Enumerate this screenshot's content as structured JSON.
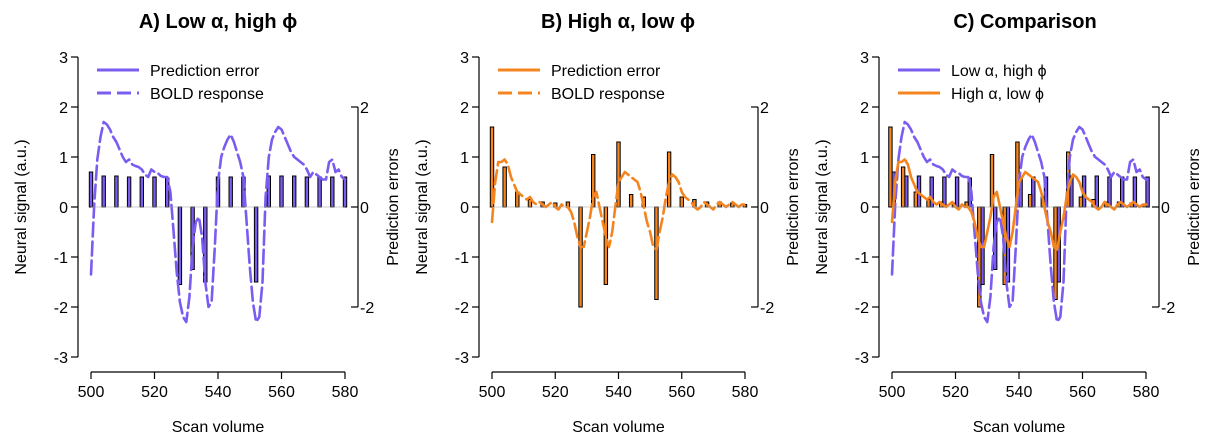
{
  "colors": {
    "low": "#7b5cf0",
    "high": "#f5841f",
    "axis": "#000000"
  },
  "chart_data": [
    {
      "type": "line",
      "title": "A) Low α, high ϕ",
      "xlabel": "Scan volume",
      "ylabel": "Neural signal (a.u.)",
      "y2label": "Prediction errors",
      "xlim": [
        500,
        580
      ],
      "ylim": [
        -3,
        3
      ],
      "y2lim": [
        -2,
        2
      ],
      "xticks": [
        "500",
        "520",
        "540",
        "560",
        "580"
      ],
      "yticks": [
        "3",
        "2",
        "1",
        "0",
        "-1",
        "-2",
        "-3"
      ],
      "y2ticks": [
        "2",
        "0",
        "-2"
      ],
      "legend": {
        "placement": "top-left",
        "entries": [
          {
            "label": "Prediction error",
            "style": "solid",
            "color_key": "low"
          },
          {
            "label": "BOLD response",
            "style": "dashed",
            "color_key": "low"
          }
        ]
      },
      "series": [
        {
          "kind": "bars",
          "color_key": "low",
          "axis": "right",
          "x": [
            500,
            504,
            508,
            512,
            516,
            520,
            524,
            528,
            532,
            536,
            540,
            544,
            548,
            552,
            556,
            560,
            564,
            568,
            572,
            576,
            580
          ],
          "values": [
            0.7,
            0.62,
            0.62,
            0.6,
            0.6,
            0.6,
            0.58,
            -1.55,
            -1.25,
            -1.5,
            0.6,
            0.6,
            0.6,
            -1.5,
            0.62,
            0.62,
            0.62,
            0.6,
            0.6,
            0.6,
            0.6
          ]
        },
        {
          "kind": "line",
          "color_key": "low",
          "style": "dashed",
          "axis": "left",
          "x": [
            500,
            501,
            502,
            503,
            504,
            505,
            506,
            507,
            508,
            509,
            510,
            511,
            512,
            513,
            514,
            515,
            516,
            517,
            518,
            519,
            520,
            521,
            522,
            523,
            524,
            525,
            526,
            527,
            528,
            529,
            530,
            531,
            532,
            533,
            534,
            535,
            536,
            537,
            538,
            539,
            540,
            541,
            542,
            543,
            544,
            545,
            546,
            547,
            548,
            549,
            550,
            551,
            552,
            553,
            554,
            555,
            556,
            557,
            558,
            559,
            560,
            561,
            562,
            563,
            564,
            565,
            566,
            567,
            568,
            569,
            570,
            571,
            572,
            573,
            574,
            575,
            576,
            577,
            578,
            579,
            580
          ],
          "values": [
            -1.35,
            0.05,
            0.95,
            1.4,
            1.7,
            1.65,
            1.55,
            1.4,
            1.3,
            1.15,
            1.0,
            0.9,
            0.95,
            0.85,
            0.82,
            0.8,
            0.75,
            0.65,
            0.6,
            0.75,
            0.7,
            0.68,
            0.62,
            0.6,
            0.6,
            0.3,
            -0.5,
            -1.3,
            -1.9,
            -2.2,
            -2.3,
            -1.8,
            -0.8,
            -0.3,
            -0.2,
            -0.6,
            -1.5,
            -2.0,
            -1.9,
            -0.8,
            0.5,
            1.0,
            1.2,
            1.35,
            1.45,
            1.3,
            1.1,
            0.9,
            0.6,
            -0.3,
            -1.2,
            -1.9,
            -2.3,
            -2.2,
            -1.5,
            0.2,
            1.0,
            1.35,
            1.5,
            1.6,
            1.55,
            1.4,
            1.25,
            1.1,
            1.0,
            0.95,
            0.9,
            0.85,
            0.75,
            0.6,
            0.7,
            0.65,
            0.6,
            0.55,
            0.55,
            0.9,
            0.95,
            0.7,
            0.75,
            0.6,
            0.55
          ]
        }
      ]
    },
    {
      "type": "line",
      "title": "B) High α, low ϕ",
      "xlabel": "Scan volume",
      "ylabel": "Neural signal (a.u.)",
      "y2label": "Prediction errors",
      "xlim": [
        500,
        580
      ],
      "ylim": [
        -3,
        3
      ],
      "y2lim": [
        -2,
        2
      ],
      "xticks": [
        "500",
        "520",
        "540",
        "560",
        "580"
      ],
      "yticks": [
        "3",
        "2",
        "1",
        "0",
        "-1",
        "-2",
        "-3"
      ],
      "y2ticks": [
        "2",
        "0",
        "-2"
      ],
      "legend": {
        "placement": "top-left",
        "entries": [
          {
            "label": "Prediction error",
            "style": "solid",
            "color_key": "high"
          },
          {
            "label": "BOLD response",
            "style": "dashed",
            "color_key": "high"
          }
        ]
      },
      "series": [
        {
          "kind": "bars",
          "color_key": "high",
          "axis": "right",
          "x": [
            500,
            504,
            508,
            512,
            516,
            520,
            524,
            528,
            532,
            536,
            540,
            544,
            548,
            552,
            556,
            560,
            564,
            568,
            572,
            576,
            580
          ],
          "values": [
            1.6,
            0.8,
            0.3,
            0.15,
            0.1,
            0.08,
            0.1,
            -2.0,
            1.05,
            -1.55,
            1.3,
            0.25,
            0.2,
            -1.85,
            1.1,
            0.2,
            0.15,
            0.1,
            0.1,
            0.08,
            0.05
          ]
        },
        {
          "kind": "line",
          "color_key": "high",
          "style": "dashed",
          "axis": "left",
          "x": [
            500,
            501,
            502,
            503,
            504,
            505,
            506,
            507,
            508,
            509,
            510,
            511,
            512,
            513,
            514,
            515,
            516,
            517,
            518,
            519,
            520,
            521,
            522,
            523,
            524,
            525,
            526,
            527,
            528,
            529,
            530,
            531,
            532,
            533,
            534,
            535,
            536,
            537,
            538,
            539,
            540,
            541,
            542,
            543,
            544,
            545,
            546,
            547,
            548,
            549,
            550,
            551,
            552,
            553,
            554,
            555,
            556,
            557,
            558,
            559,
            560,
            561,
            562,
            563,
            564,
            565,
            566,
            567,
            568,
            569,
            570,
            571,
            572,
            573,
            574,
            575,
            576,
            577,
            578,
            579,
            580
          ],
          "values": [
            -0.3,
            0.5,
            0.9,
            0.9,
            0.95,
            0.85,
            0.6,
            0.45,
            0.3,
            0.25,
            0.2,
            0.15,
            0.2,
            0.1,
            0.05,
            0.1,
            0.05,
            0.0,
            0.05,
            0.1,
            0.0,
            -0.05,
            0.05,
            0.0,
            0.0,
            -0.1,
            -0.3,
            -0.6,
            -0.8,
            -0.8,
            -0.5,
            -0.2,
            0.2,
            0.3,
            0.0,
            -0.3,
            -0.6,
            -0.8,
            -0.5,
            0.0,
            0.5,
            0.6,
            0.7,
            0.65,
            0.6,
            0.55,
            0.5,
            0.3,
            0.0,
            -0.3,
            -0.5,
            -0.8,
            -0.85,
            -0.5,
            -0.2,
            0.2,
            0.5,
            0.65,
            0.6,
            0.5,
            0.3,
            0.2,
            0.15,
            0.1,
            0.0,
            -0.05,
            0.0,
            0.1,
            0.05,
            0.0,
            -0.05,
            0.05,
            0.1,
            0.05,
            0.0,
            0.05,
            0.1,
            0.05,
            0.0,
            0.05,
            0.05
          ]
        }
      ]
    },
    {
      "type": "line",
      "title": "C) Comparison",
      "xlabel": "Scan volume",
      "ylabel": "Neural signal (a.u.)",
      "y2label": "Prediction errors",
      "xlim": [
        500,
        580
      ],
      "ylim": [
        -3,
        3
      ],
      "y2lim": [
        -2,
        2
      ],
      "xticks": [
        "500",
        "520",
        "540",
        "560",
        "580"
      ],
      "yticks": [
        "3",
        "2",
        "1",
        "0",
        "-1",
        "-2",
        "-3"
      ],
      "y2ticks": [
        "2",
        "0",
        "-2"
      ],
      "legend": {
        "placement": "top-left",
        "entries": [
          {
            "label": "Low α, high ϕ",
            "style": "solid",
            "color_key": "low"
          },
          {
            "label": "High α, low ϕ",
            "style": "solid",
            "color_key": "high"
          }
        ]
      },
      "series": [
        {
          "kind": "bars",
          "color_key": "low",
          "axis": "right",
          "offset": 0.5,
          "x": [
            500,
            504,
            508,
            512,
            516,
            520,
            524,
            528,
            532,
            536,
            540,
            544,
            548,
            552,
            556,
            560,
            564,
            568,
            572,
            576,
            580
          ],
          "values": [
            0.7,
            0.62,
            0.62,
            0.6,
            0.6,
            0.6,
            0.58,
            -1.55,
            -1.25,
            -1.5,
            0.6,
            0.6,
            0.6,
            -1.5,
            0.62,
            0.62,
            0.62,
            0.6,
            0.6,
            0.6,
            0.6
          ]
        },
        {
          "kind": "bars",
          "color_key": "high",
          "axis": "right",
          "offset": -0.5,
          "x": [
            500,
            504,
            508,
            512,
            516,
            520,
            524,
            528,
            532,
            536,
            540,
            544,
            548,
            552,
            556,
            560,
            564,
            568,
            572,
            576,
            580
          ],
          "values": [
            1.6,
            0.8,
            0.3,
            0.15,
            0.1,
            0.08,
            0.1,
            -2.0,
            1.05,
            -1.55,
            1.3,
            0.25,
            0.2,
            -1.85,
            1.1,
            0.2,
            0.15,
            0.1,
            0.1,
            0.08,
            0.05
          ]
        },
        {
          "kind": "line",
          "color_key": "low",
          "style": "dashed",
          "axis": "left",
          "x": [
            500,
            501,
            502,
            503,
            504,
            505,
            506,
            507,
            508,
            509,
            510,
            511,
            512,
            513,
            514,
            515,
            516,
            517,
            518,
            519,
            520,
            521,
            522,
            523,
            524,
            525,
            526,
            527,
            528,
            529,
            530,
            531,
            532,
            533,
            534,
            535,
            536,
            537,
            538,
            539,
            540,
            541,
            542,
            543,
            544,
            545,
            546,
            547,
            548,
            549,
            550,
            551,
            552,
            553,
            554,
            555,
            556,
            557,
            558,
            559,
            560,
            561,
            562,
            563,
            564,
            565,
            566,
            567,
            568,
            569,
            570,
            571,
            572,
            573,
            574,
            575,
            576,
            577,
            578,
            579,
            580
          ],
          "values": [
            -1.35,
            0.05,
            0.95,
            1.4,
            1.7,
            1.65,
            1.55,
            1.4,
            1.3,
            1.15,
            1.0,
            0.9,
            0.95,
            0.85,
            0.82,
            0.8,
            0.75,
            0.65,
            0.6,
            0.75,
            0.7,
            0.68,
            0.62,
            0.6,
            0.6,
            0.3,
            -0.5,
            -1.3,
            -1.9,
            -2.2,
            -2.3,
            -1.8,
            -0.8,
            -0.3,
            -0.2,
            -0.6,
            -1.5,
            -2.0,
            -1.9,
            -0.8,
            0.5,
            1.0,
            1.2,
            1.35,
            1.45,
            1.3,
            1.1,
            0.9,
            0.6,
            -0.3,
            -1.2,
            -1.9,
            -2.3,
            -2.2,
            -1.5,
            0.2,
            1.0,
            1.35,
            1.5,
            1.6,
            1.55,
            1.4,
            1.25,
            1.1,
            1.0,
            0.95,
            0.9,
            0.85,
            0.75,
            0.6,
            0.7,
            0.65,
            0.6,
            0.55,
            0.55,
            0.9,
            0.95,
            0.7,
            0.75,
            0.6,
            0.55
          ]
        },
        {
          "kind": "line",
          "color_key": "high",
          "style": "solid",
          "axis": "left",
          "x": [
            500,
            501,
            502,
            503,
            504,
            505,
            506,
            507,
            508,
            509,
            510,
            511,
            512,
            513,
            514,
            515,
            516,
            517,
            518,
            519,
            520,
            521,
            522,
            523,
            524,
            525,
            526,
            527,
            528,
            529,
            530,
            531,
            532,
            533,
            534,
            535,
            536,
            537,
            538,
            539,
            540,
            541,
            542,
            543,
            544,
            545,
            546,
            547,
            548,
            549,
            550,
            551,
            552,
            553,
            554,
            555,
            556,
            557,
            558,
            559,
            560,
            561,
            562,
            563,
            564,
            565,
            566,
            567,
            568,
            569,
            570,
            571,
            572,
            573,
            574,
            575,
            576,
            577,
            578,
            579,
            580
          ],
          "values": [
            -0.3,
            0.5,
            0.9,
            0.9,
            0.95,
            0.85,
            0.6,
            0.45,
            0.3,
            0.25,
            0.2,
            0.15,
            0.2,
            0.1,
            0.05,
            0.1,
            0.05,
            0.0,
            0.05,
            0.1,
            0.0,
            -0.05,
            0.05,
            0.0,
            0.0,
            -0.1,
            -0.3,
            -0.6,
            -0.8,
            -0.8,
            -0.5,
            -0.2,
            0.2,
            0.3,
            0.0,
            -0.3,
            -0.6,
            -0.8,
            -0.5,
            0.0,
            0.5,
            0.6,
            0.7,
            0.65,
            0.6,
            0.55,
            0.5,
            0.3,
            0.0,
            -0.3,
            -0.5,
            -0.8,
            -0.85,
            -0.5,
            -0.2,
            0.2,
            0.5,
            0.65,
            0.6,
            0.5,
            0.3,
            0.2,
            0.15,
            0.1,
            0.0,
            -0.05,
            0.0,
            0.1,
            0.05,
            0.0,
            -0.05,
            0.05,
            0.1,
            0.05,
            0.0,
            0.05,
            0.1,
            0.05,
            0.0,
            0.05,
            0.05
          ]
        }
      ]
    }
  ]
}
